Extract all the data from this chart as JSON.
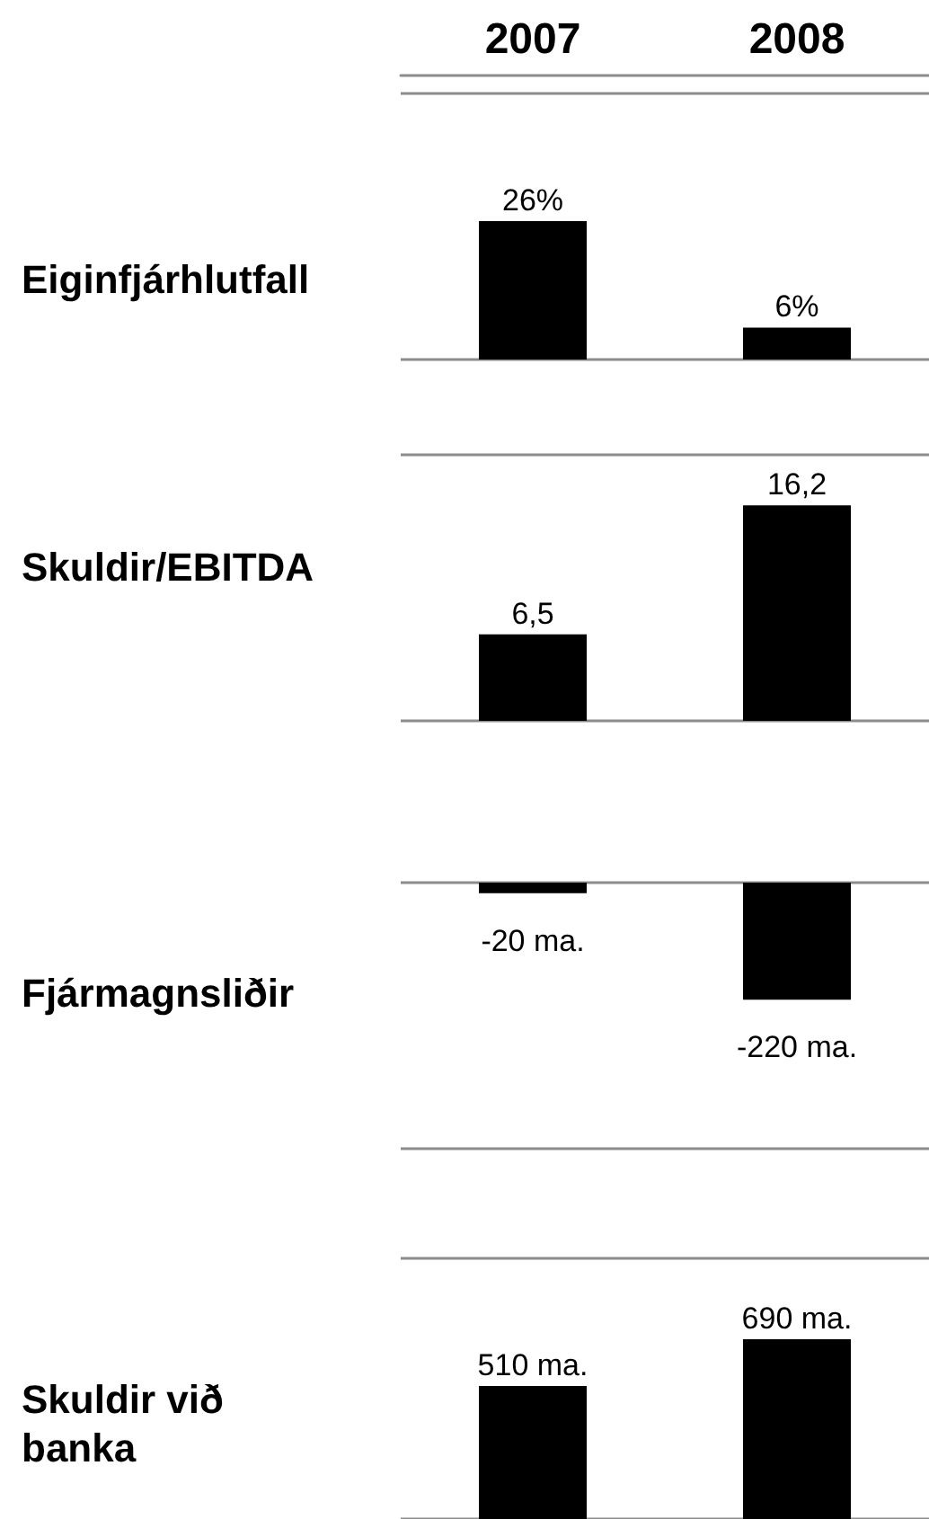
{
  "chart_data": [
    {
      "type": "bar",
      "title": "Eiginfjárhlutfall",
      "categories": [
        "2007",
        "2008"
      ],
      "values": [
        26,
        6
      ],
      "value_labels": [
        "26%",
        "6%"
      ],
      "color": "#000000",
      "ylim": [
        0,
        50
      ],
      "tick_labels": "x"
    },
    {
      "type": "bar",
      "title": "Skuldir/EBITDA",
      "categories": [
        "2007",
        "2008"
      ],
      "values": [
        6.5,
        16.2
      ],
      "value_labels": [
        "6,5",
        "16,2"
      ],
      "color": "#000000",
      "ylim": [
        0,
        20
      ],
      "tick_labels": false
    },
    {
      "type": "bar",
      "title": "Fjármagnsliðir",
      "categories": [
        "2007",
        "2008"
      ],
      "values": [
        -20,
        -220
      ],
      "value_labels": [
        "-20 ma.",
        "-220 ma."
      ],
      "color": "#000000",
      "ylim": [
        -500,
        0
      ],
      "tick_labels": false
    },
    {
      "type": "bar",
      "title": "Skuldir við banka",
      "categories": [
        "2007",
        "2008"
      ],
      "values": [
        510,
        690
      ],
      "value_labels": [
        "510 ma.",
        "690 ma."
      ],
      "color": "#000000",
      "ylim": [
        0,
        1000
      ],
      "tick_labels": false
    }
  ]
}
